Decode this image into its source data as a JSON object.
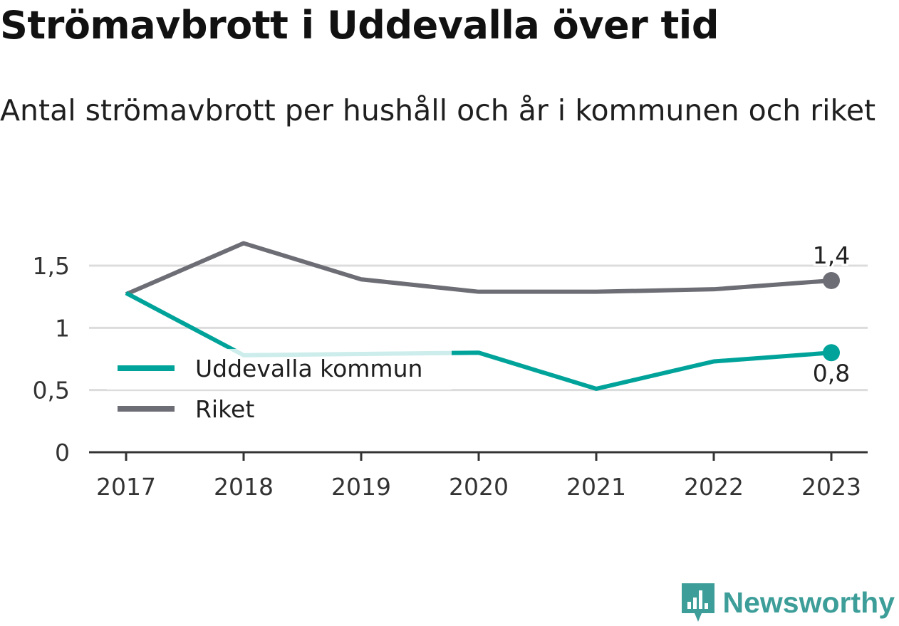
{
  "title": "Strömavbrott i Uddevalla över tid",
  "subtitle": "Antal strömavbrott per hushåll och år i kommunen och riket",
  "brand": {
    "name": "Newsworthy",
    "icon": "newsworthy-logo-icon",
    "color": "#3d9e99"
  },
  "chart_data": {
    "type": "line",
    "x": [
      "2017",
      "2018",
      "2019",
      "2020",
      "2021",
      "2022",
      "2023"
    ],
    "series": [
      {
        "name": "Uddevalla kommun",
        "color": "#00a39a",
        "values": [
          1.28,
          0.78,
          0.79,
          0.8,
          0.51,
          0.73,
          0.8
        ],
        "end_label": "0,8"
      },
      {
        "name": "Riket",
        "color": "#6d6d75",
        "values": [
          1.27,
          1.68,
          1.39,
          1.29,
          1.29,
          1.31,
          1.38
        ],
        "end_label": "1,4"
      }
    ],
    "y_ticks": [
      {
        "value": 0,
        "label": "0"
      },
      {
        "value": 0.5,
        "label": "0,5"
      },
      {
        "value": 1,
        "label": "1"
      },
      {
        "value": 1.5,
        "label": "1,5"
      }
    ],
    "ylim": [
      0,
      1.5
    ],
    "grid": true,
    "legend_position": "bottom-left"
  }
}
